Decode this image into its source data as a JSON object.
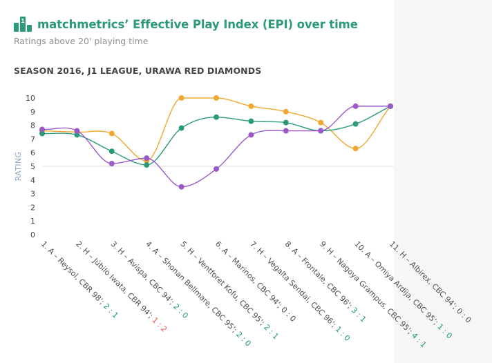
{
  "header": {
    "logo_number": "1",
    "title": "matchmetrics’ Effective Play Index (EPI) over time",
    "subtitle": "Ratings above 20' playing time",
    "season": "SEASON 2016, J1 LEAGUE, URAWA RED DIAMONDS"
  },
  "colors": {
    "brand": "#2a9a7a",
    "win_score": "#1b9a6a",
    "loss_score": "#e5564a",
    "series_orange": "#f0a830",
    "series_green": "#2a9a7a",
    "series_purple": "#9b59c8",
    "reference_line": "#dcdcdc"
  },
  "chart_data": {
    "type": "line",
    "ylabel": "RATING",
    "xlabel": "",
    "ylim": [
      0,
      10
    ],
    "yticks": [
      0,
      1,
      2,
      3,
      4,
      5,
      6,
      7,
      8,
      9,
      10
    ],
    "reference_line_y": 5,
    "grid": false,
    "legend": "none",
    "categories": [
      {
        "label": "1. A – Reysol, CBR 98'; ",
        "score": "2 : 1",
        "result": "win"
      },
      {
        "label": "2. H – Júbilo Iwata, CBR 94'; ",
        "score": "1 : 2",
        "result": "loss"
      },
      {
        "label": "3. H – Avispa, CBC 94'; ",
        "score": "2 : 0",
        "result": "win"
      },
      {
        "label": "4. A – Shonan Bellmare, CBC 95'; ",
        "score": "2 : 0",
        "result": "win"
      },
      {
        "label": "5. H – Ventforet Kofu, CBC 95'; ",
        "score": "2 : 1",
        "result": "win"
      },
      {
        "label": "6. A – Marinos, CBC 94'; ",
        "score": "0 : 0",
        "result": "draw"
      },
      {
        "label": "7. H – Vegalta Sendai, CBC 96'; ",
        "score": "1 : 0",
        "result": "win"
      },
      {
        "label": "8. A – Frontale, CBC 96'; ",
        "score": "3 : 1",
        "result": "win"
      },
      {
        "label": "9. H – Nagoya Grampus, CBC 95'; ",
        "score": "4 : 1",
        "result": "win"
      },
      {
        "label": "10. A – Omiya Ardija, CBC 95'; ",
        "score": "1 : 0",
        "result": "win"
      },
      {
        "label": "11. H – Albirex, CBC 94'; ",
        "score": "0 : 0",
        "result": "draw"
      }
    ],
    "series": [
      {
        "color": "#f0a830",
        "values": [
          7.6,
          7.5,
          7.4,
          5.4,
          10.0,
          10.0,
          9.4,
          9.0,
          8.2,
          6.3,
          9.4
        ]
      },
      {
        "color": "#2a9a7a",
        "values": [
          7.4,
          7.3,
          6.1,
          5.1,
          7.8,
          8.6,
          8.3,
          8.2,
          7.6,
          8.1,
          9.4
        ]
      },
      {
        "color": "#9b59c8",
        "values": [
          7.7,
          7.6,
          5.2,
          5.6,
          3.5,
          4.8,
          7.3,
          7.6,
          7.6,
          9.4,
          9.4
        ]
      }
    ]
  }
}
